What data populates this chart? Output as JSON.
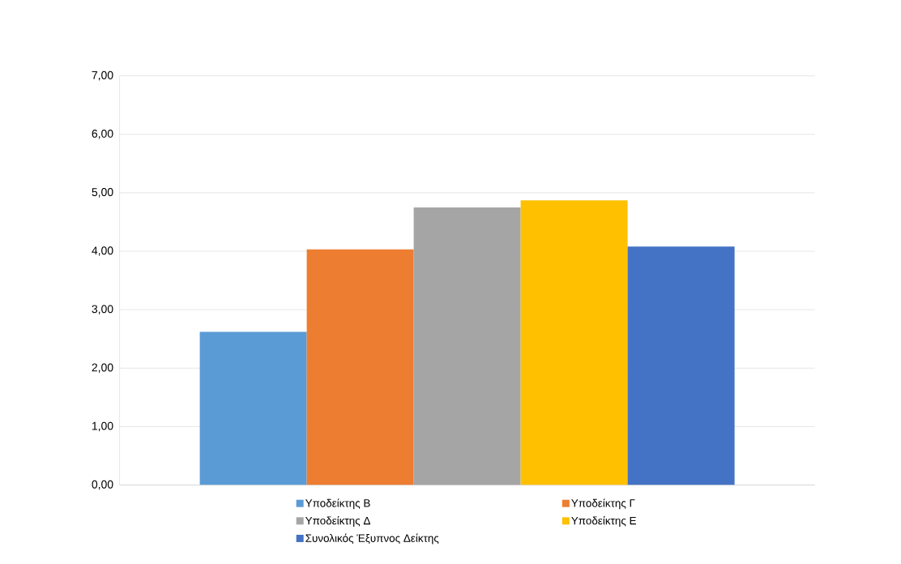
{
  "chart_data": {
    "type": "bar",
    "categories": [
      null
    ],
    "series": [
      {
        "name": "Υποδείκτης Β",
        "color": "#5b9bd5",
        "values": [
          2.62
        ]
      },
      {
        "name": "Υποδείκτης Γ",
        "color": "#ed7d31",
        "values": [
          4.03
        ]
      },
      {
        "name": "Υποδείκτης Δ",
        "color": "#a5a5a5",
        "values": [
          4.75
        ]
      },
      {
        "name": "Υποδείκτης Ε",
        "color": "#ffc000",
        "values": [
          4.87
        ]
      },
      {
        "name": "Συνολικός Έξυπνος Δείκτης",
        "color": "#4472c4",
        "values": [
          4.08
        ]
      }
    ],
    "ylim": [
      0,
      7
    ],
    "yticks": [
      {
        "value": 0,
        "label": "0,00"
      },
      {
        "value": 1,
        "label": "1,00"
      },
      {
        "value": 2,
        "label": "2,00"
      },
      {
        "value": 3,
        "label": "3,00"
      },
      {
        "value": 4,
        "label": "4,00"
      },
      {
        "value": 5,
        "label": "5,00"
      },
      {
        "value": 6,
        "label": "6,00"
      },
      {
        "value": 7,
        "label": "7,00"
      }
    ],
    "grid": "y",
    "legend": "bottom"
  }
}
